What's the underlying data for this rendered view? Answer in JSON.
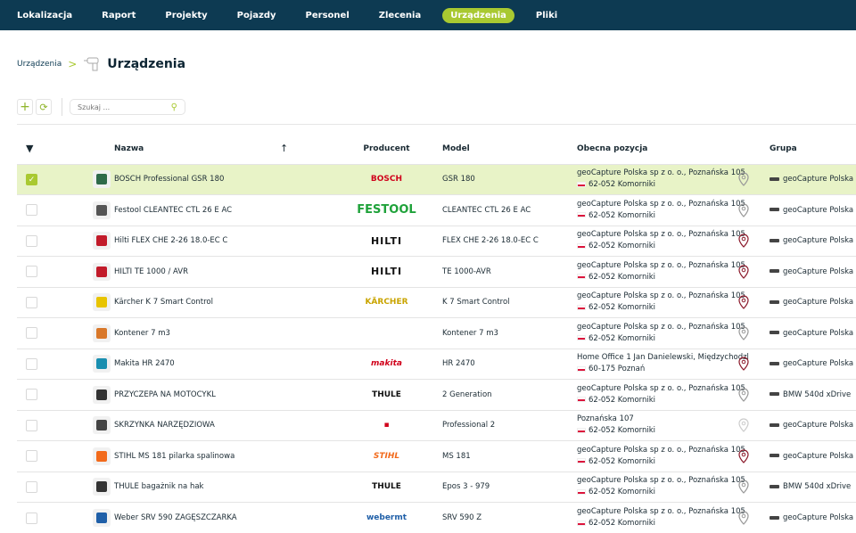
{
  "nav": {
    "items": [
      "Lokalizacja",
      "Raport",
      "Projekty",
      "Pojazdy",
      "Personel",
      "Zlecenia",
      "Urządzenia",
      "Pliki"
    ],
    "active": "Urządzenia"
  },
  "breadcrumb": {
    "parent": "Urządzenia",
    "title": "Urządzenia"
  },
  "toolbar": {
    "search_placeholder": "Szukaj ..."
  },
  "colors": {
    "accent": "#a9c931",
    "navbar": "#0d3a52",
    "selected_row": "#e8f3c7",
    "pin_active": "#8b1a2b",
    "pin_inactive": "#999999"
  },
  "table": {
    "headers": {
      "name": "Nazwa",
      "producer": "Producent",
      "model": "Model",
      "position": "Obecna pozycja",
      "group": "Grupa"
    },
    "rows": [
      {
        "selected": true,
        "name": "BOSCH Professional GSR 180",
        "producer": "BOSCH",
        "producer_color": "#d0021b",
        "model": "GSR 180",
        "addr1": "geoCapture Polska sp z o. o., Poznańska 105",
        "addr2": "62-052 Komorniki",
        "pin": "gray",
        "group": "geoCapture Polska",
        "thumb": "#2f6a4a"
      },
      {
        "selected": false,
        "name": "Festool CLEANTEC CTL 26 E AC",
        "producer": "FESTOOL",
        "producer_color": "#1fa23a",
        "model": "CLEANTEC CTL 26 E AC",
        "addr1": "geoCapture Polska sp z o. o., Poznańska 105",
        "addr2": "62-052 Komorniki",
        "pin": "gray",
        "group": "geoCapture Polska",
        "thumb": "#555"
      },
      {
        "selected": false,
        "name": "Hilti FLEX CHE 2-26 18.0-EC C",
        "producer": "HILTI",
        "producer_color": "#111",
        "model": "FLEX CHE 2-26 18.0-EC C",
        "addr1": "geoCapture Polska sp z o. o., Poznańska 105",
        "addr2": "62-052 Komorniki",
        "pin": "red",
        "group": "geoCapture Polska",
        "thumb": "#c21b2a"
      },
      {
        "selected": false,
        "name": "HILTI TE 1000 / AVR",
        "producer": "HILTI",
        "producer_color": "#111",
        "model": "TE 1000-AVR",
        "addr1": "geoCapture Polska sp z o. o., Poznańska 105",
        "addr2": "62-052 Komorniki",
        "pin": "red",
        "group": "geoCapture Polska",
        "thumb": "#c21b2a"
      },
      {
        "selected": false,
        "name": "Kärcher K 7 Smart Control",
        "producer": "KÄRCHER",
        "producer_color": "#c9a400",
        "model": "K 7 Smart Control",
        "addr1": "geoCapture Polska sp z o. o., Poznańska 105",
        "addr2": "62-052 Komorniki",
        "pin": "red",
        "group": "geoCapture Polska",
        "thumb": "#e8c400"
      },
      {
        "selected": false,
        "name": "Kontener 7 m3",
        "producer": "",
        "producer_color": "#111",
        "model": "Kontener 7 m3",
        "addr1": "geoCapture Polska sp z o. o., Poznańska 105",
        "addr2": "62-052 Komorniki",
        "pin": "gray",
        "group": "geoCapture Polska",
        "thumb": "#d9782a"
      },
      {
        "selected": false,
        "name": "Makita HR 2470",
        "producer": "makita",
        "producer_color": "#d0021b",
        "model": "HR 2470",
        "addr1": "Home Office 1 Jan Danielewski, Międzychodzl",
        "addr2": "60-175 Poznań",
        "pin": "red",
        "group": "geoCapture Polska",
        "thumb": "#1a8fb0"
      },
      {
        "selected": false,
        "name": "PRZYCZEPA NA MOTOCYKL",
        "producer": "THULE",
        "producer_color": "#111",
        "model": "2 Generation",
        "addr1": "geoCapture Polska sp z o. o., Poznańska 105",
        "addr2": "62-052 Komorniki",
        "pin": "gray",
        "group": "BMW 540d xDrive",
        "thumb": "#333"
      },
      {
        "selected": false,
        "name": "SKRZYNKA NARZĘDZIOWA",
        "producer": "▪",
        "producer_color": "#d0021b",
        "model": "Professional 2",
        "addr1": "Poznańska 107",
        "addr2": "62-052 Komorniki",
        "pin": "light",
        "group": "geoCapture Polska",
        "thumb": "#444"
      },
      {
        "selected": false,
        "name": "STIHL MS 181 pilarka spalinowa",
        "producer": "STIHL",
        "producer_color": "#f26a1b",
        "model": "MS 181",
        "addr1": "geoCapture Polska sp z o. o., Poznańska 105",
        "addr2": "62-052 Komorniki",
        "pin": "red",
        "group": "geoCapture Polska",
        "thumb": "#f26a1b"
      },
      {
        "selected": false,
        "name": "THULE bagażnik na hak",
        "producer": "THULE",
        "producer_color": "#111",
        "model": "Epos 3 - 979",
        "addr1": "geoCapture Polska sp z o. o., Poznańska 105",
        "addr2": "62-052 Komorniki",
        "pin": "gray",
        "group": "BMW 540d xDrive",
        "thumb": "#333"
      },
      {
        "selected": false,
        "name": "Weber SRV 590 ZAGĘSZCZARKA",
        "producer": "webermt",
        "producer_color": "#1f5fa8",
        "model": "SRV 590 Z",
        "addr1": "geoCapture Polska sp z o. o., Poznańska 105",
        "addr2": "62-052 Komorniki",
        "pin": "gray",
        "group": "geoCapture Polska",
        "thumb": "#1f5fa8"
      }
    ]
  }
}
